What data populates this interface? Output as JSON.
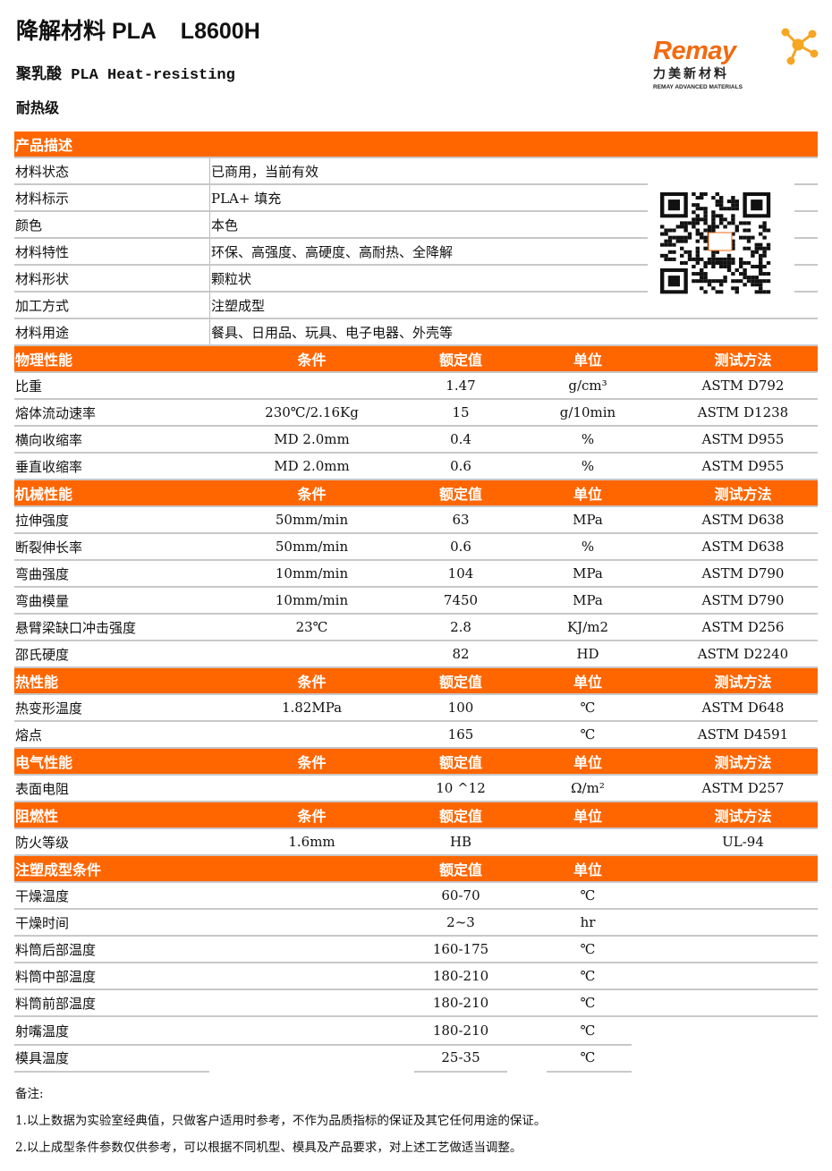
{
  "header": {
    "title": "降解材料 PLA    L8600H",
    "subtitle": "聚乳酸 PLA Heat-resisting",
    "grade": "耐热级"
  },
  "logo": {
    "brand": "Remay",
    "cn": "力美新材料",
    "en": "REMAY ADVANCED MATERIALS",
    "color": "#f26a10"
  },
  "accent": "#ff6600",
  "description": {
    "title": "产品描述",
    "rows": [
      [
        "材料状态",
        "已商用，当前有效"
      ],
      [
        "材料标示",
        "PLA+ 填充"
      ],
      [
        "颜色",
        "本色"
      ],
      [
        "材料特性",
        "环保、高强度、高硬度、高耐热、全降解"
      ],
      [
        "材料形状",
        "颗粒状"
      ],
      [
        "加工方式",
        "注塑成型"
      ],
      [
        "材料用途",
        "餐具、日用品、玩具、电子电器、外壳等"
      ]
    ]
  },
  "sections": [
    {
      "header": [
        "物理性能",
        "条件",
        "额定值",
        "单位",
        "测试方法"
      ],
      "rows": [
        [
          "比重",
          "",
          "1.47",
          "g/cm³",
          "ASTM D792"
        ],
        [
          "熔体流动速率",
          "230℃/2.16Kg",
          "15",
          "g/10min",
          "ASTM D1238"
        ],
        [
          "横向收缩率",
          "MD 2.0mm",
          "0.4",
          "%",
          "ASTM D955"
        ],
        [
          "垂直收缩率",
          "MD 2.0mm",
          "0.6",
          "%",
          "ASTM D955"
        ]
      ]
    },
    {
      "header": [
        "机械性能",
        "条件",
        "额定值",
        "单位",
        "测试方法"
      ],
      "rows": [
        [
          "拉伸强度",
          "50mm/min",
          "63",
          "MPa",
          "ASTM D638"
        ],
        [
          "断裂伸长率",
          "50mm/min",
          "0.6",
          "%",
          "ASTM D638"
        ],
        [
          "弯曲强度",
          "10mm/min",
          "104",
          "MPa",
          "ASTM D790"
        ],
        [
          "弯曲模量",
          "10mm/min",
          "7450",
          "MPa",
          "ASTM D790"
        ],
        [
          "悬臂梁缺口冲击强度",
          "23℃",
          "2.8",
          "KJ/m2",
          "ASTM D256"
        ],
        [
          "邵氏硬度",
          "",
          "82",
          "HD",
          "ASTM D2240"
        ]
      ]
    },
    {
      "header": [
        "热性能",
        "条件",
        "额定值",
        "单位",
        "测试方法"
      ],
      "rows": [
        [
          "热变形温度",
          "1.82MPa",
          "100",
          "℃",
          "ASTM D648"
        ],
        [
          "熔点",
          "",
          "165",
          "℃",
          "ASTM D4591"
        ]
      ]
    },
    {
      "header": [
        "电气性能",
        "条件",
        "额定值",
        "单位",
        "测试方法"
      ],
      "rows": [
        [
          "表面电阻",
          "",
          "10 ^12",
          "Ω/m²",
          "ASTM D257"
        ]
      ]
    },
    {
      "header": [
        "阻燃性",
        "条件",
        "额定值",
        "单位",
        "测试方法"
      ],
      "rows": [
        [
          "防火等级",
          "1.6mm",
          "HB",
          "",
          "UL-94"
        ]
      ]
    },
    {
      "header": [
        "注塑成型条件",
        "",
        "额定值",
        "单位",
        ""
      ],
      "rows": [
        [
          "干燥温度",
          "",
          "60-70",
          "℃",
          ""
        ],
        [
          "干燥时间",
          "",
          "2~3",
          "hr",
          ""
        ],
        [
          "料筒后部温度",
          "",
          "160-175",
          "℃",
          ""
        ],
        [
          "料筒中部温度",
          "",
          "180-210",
          "℃",
          ""
        ],
        [
          "料筒前部温度",
          "",
          "180-210",
          "℃",
          ""
        ],
        [
          "射嘴温度",
          "",
          "180-210",
          "℃",
          ""
        ],
        [
          "模具温度",
          "",
          "25-35",
          "℃",
          ""
        ]
      ]
    }
  ],
  "notes": [
    "备注:",
    "1.以上数据为实验室经典值，只做客户适用时参考，不作为品质指标的保证及其它任何用途的保证。",
    "2.以上成型条件参数仅供参考，可以根据不同机型、模具及产品要求，对上述工艺做适当调整。"
  ]
}
